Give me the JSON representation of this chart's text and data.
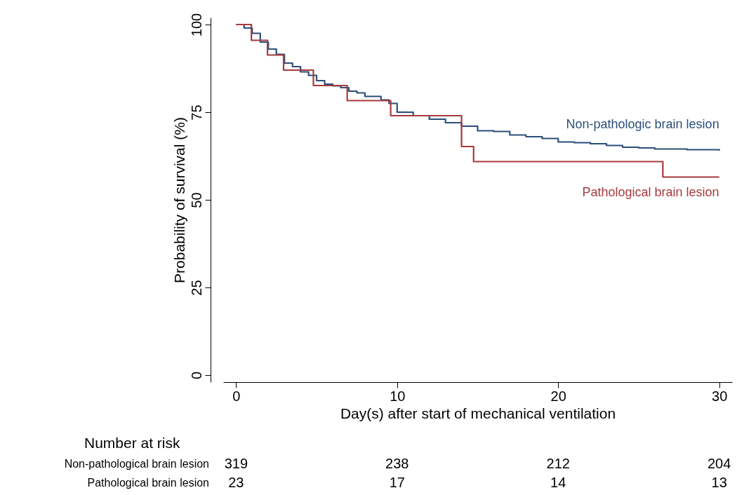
{
  "chart_data": {
    "type": "step",
    "xlabel": "Day(s) after start of mechanical ventilation",
    "ylabel": "Probability of survival (%)",
    "xlim": [
      -0.8,
      30.8
    ],
    "xticks": [
      0,
      10,
      20,
      30
    ],
    "ylim": [
      -2,
      102
    ],
    "yticks": [
      0,
      25,
      50,
      75,
      100
    ],
    "grid": false,
    "series": [
      {
        "name": "Non-pathologic brain lesion",
        "color": "#2b4e7a",
        "x": [
          0,
          0.5,
          1,
          1.5,
          2,
          2.5,
          3,
          3.5,
          4,
          4.5,
          5,
          5.5,
          6,
          6.5,
          7,
          7.5,
          8,
          9,
          9.5,
          10,
          11,
          12,
          13,
          14,
          15,
          16,
          17,
          18,
          19,
          20,
          21,
          22,
          23,
          24,
          25,
          26,
          27,
          28,
          29,
          30
        ],
        "values": [
          100,
          99,
          97.5,
          95,
          93,
          91.5,
          89,
          88,
          86.5,
          85.5,
          84,
          83,
          82.5,
          82,
          81,
          80.5,
          79.5,
          78.5,
          77.5,
          75,
          74,
          73,
          72,
          71,
          69.7,
          69.5,
          68.5,
          68,
          67.5,
          66.5,
          66.3,
          66,
          65.5,
          65,
          64.8,
          64.5,
          64.5,
          64.3,
          64.3,
          64
        ]
      },
      {
        "name": "Pathological brain lesion",
        "color": "#a83a3c",
        "x": [
          0,
          0.95,
          1.95,
          2.95,
          4.8,
          6.9,
          9.6,
          14,
          14.75,
          26.5,
          30
        ],
        "values": [
          100,
          95.5,
          91.3,
          87,
          82.6,
          78.3,
          74,
          65.2,
          60.9,
          56.5,
          56.5
        ]
      }
    ],
    "annotations": [
      "Number at risk",
      "Non-pathological brain lesion",
      "319",
      "238",
      "212",
      "204",
      "Pathological brain lesion",
      "23",
      "17",
      "14",
      "13"
    ]
  }
}
